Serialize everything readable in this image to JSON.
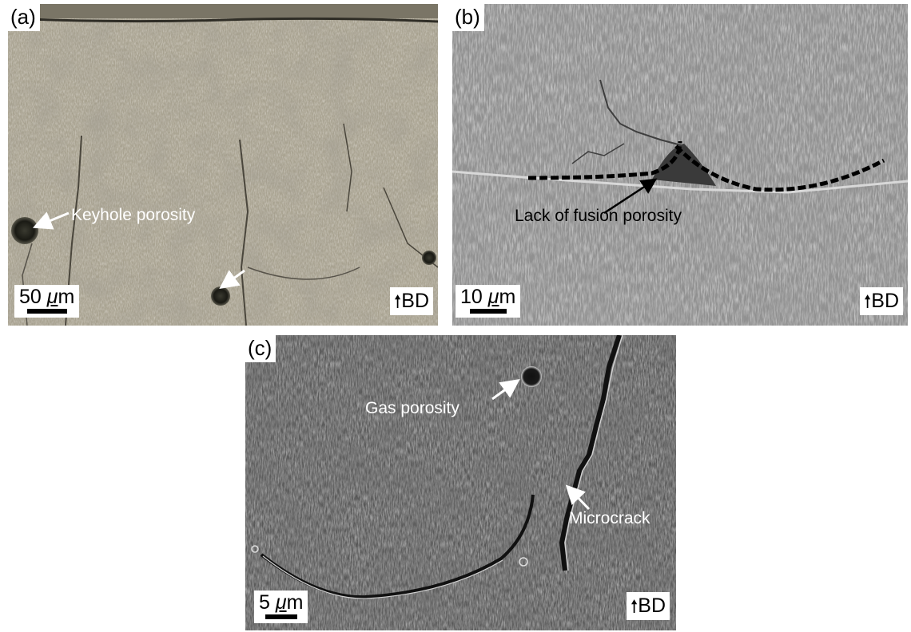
{
  "panels": {
    "a": {
      "label": "(a)",
      "annotation": "Keyhole porosity",
      "scale_value": "50",
      "scale_unit_mu": "μ",
      "scale_unit_m": "m",
      "bd_arrow": "🠕",
      "bd": "BD"
    },
    "b": {
      "label": "(b)",
      "annotation": "Lack of fusion porosity",
      "scale_value": "10",
      "scale_unit_mu": "μ",
      "scale_unit_m": "m",
      "bd_arrow": "🠕",
      "bd": "BD"
    },
    "c": {
      "label": "(c)",
      "annotation_gas": "Gas porosity",
      "annotation_crack": "Microcrack",
      "scale_value": "5",
      "scale_unit_mu": "μ",
      "scale_unit_m": "m",
      "bd_arrow": "🠕",
      "bd": "BD"
    }
  },
  "colors": {
    "optical_bg": "#9c9585",
    "sem_b_bg": "#8f8f8f",
    "sem_c_bg": "#5a5a5a"
  }
}
